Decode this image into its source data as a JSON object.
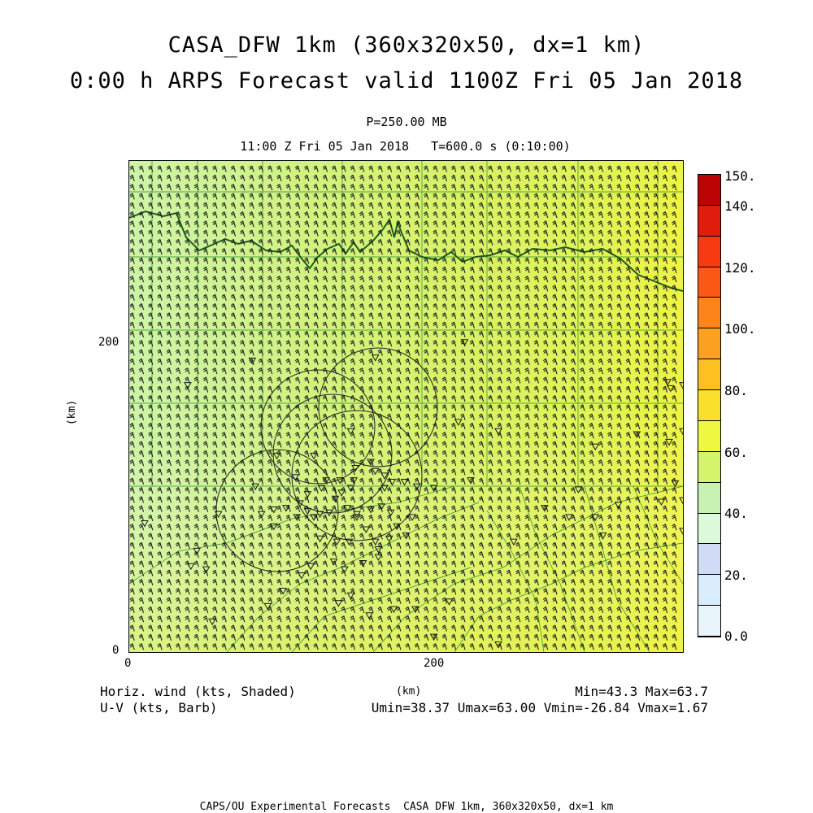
{
  "title": {
    "line1": "CASA_DFW 1km (360x320x50, dx=1 km)",
    "line2": "0:00 h ARPS Forecast valid 1100Z Fri 05 Jan 2018"
  },
  "level": "P=250.00 MB",
  "valid_time": "11:00 Z Fri 05 Jan 2018   T=600.0 s (0:10:00)",
  "axes": {
    "x_ticks": [
      "0",
      "200"
    ],
    "y_ticks": [
      "0",
      "200"
    ],
    "x_title": "(km)",
    "y_title": "(km)",
    "domain_km": {
      "x": [
        0,
        360
      ],
      "y": [
        0,
        320
      ]
    }
  },
  "colorbar": {
    "labels": [
      "150.",
      "140.",
      "120.",
      "100.",
      "80.",
      "60.",
      "40.",
      "20.",
      "0.0"
    ],
    "levels": [
      0,
      10,
      20,
      30,
      40,
      50,
      60,
      70,
      80,
      90,
      100,
      110,
      120,
      130,
      140,
      150
    ],
    "colors": [
      "#e8f6fc",
      "#d8ecfb",
      "#d0dcf6",
      "#dcfada",
      "#c8f2b4",
      "#d4f46c",
      "#eef840",
      "#f8e02c",
      "#fcc020",
      "#fca020",
      "#fc8418",
      "#fc5a14",
      "#f83a10",
      "#e01c0c",
      "#bc0404"
    ]
  },
  "footer": {
    "left1": "Horiz. wind (kts, Shaded)",
    "left2": "U-V (kts, Barb)",
    "right1": "Min=43.3 Max=63.7",
    "right2": "Umin=38.37 Umax=63.00 Vmin=-26.84 Vmax=1.67"
  },
  "credit": "CAPS/OU Experimental Forecasts  CASA DFW 1km, 360x320x50, dx=1 km",
  "map": {
    "field": "horizontal wind speed at 250 mb",
    "speed_min_kts": 43.3,
    "speed_max_kts": 63.7,
    "radar_rings": 5,
    "stations": [
      [
        54,
        300
      ],
      [
        50,
        266
      ],
      [
        10,
        236
      ],
      [
        82,
        212
      ],
      [
        94,
        227
      ],
      [
        116,
        228
      ],
      [
        111,
        223
      ],
      [
        125,
        213
      ],
      [
        128,
        208
      ],
      [
        137,
        208
      ],
      [
        146,
        208
      ],
      [
        147,
        200
      ],
      [
        157,
        196
      ],
      [
        160,
        202
      ],
      [
        166,
        205
      ],
      [
        166,
        213
      ],
      [
        171,
        209
      ],
      [
        179,
        209
      ],
      [
        187,
        212
      ],
      [
        198,
        213
      ],
      [
        184,
        232
      ],
      [
        164,
        225
      ],
      [
        170,
        229
      ],
      [
        174,
        238
      ],
      [
        180,
        244
      ],
      [
        169,
        246
      ],
      [
        157,
        227
      ],
      [
        148,
        230
      ],
      [
        142,
        226
      ],
      [
        148,
        232
      ],
      [
        154,
        240
      ],
      [
        160,
        248
      ],
      [
        162,
        253
      ],
      [
        162,
        258
      ],
      [
        152,
        262
      ],
      [
        140,
        266
      ],
      [
        133,
        261
      ],
      [
        124,
        246
      ],
      [
        135,
        248
      ],
      [
        143,
        248
      ],
      [
        144,
        213
      ],
      [
        138,
        216
      ],
      [
        134,
        220
      ],
      [
        130,
        229
      ],
      [
        124,
        230
      ],
      [
        120,
        232
      ],
      [
        109,
        232
      ],
      [
        116,
        217
      ],
      [
        102,
        226
      ],
      [
        86,
        230
      ],
      [
        94,
        238
      ],
      [
        108,
        206
      ],
      [
        118,
        264
      ],
      [
        112,
        270
      ],
      [
        100,
        280
      ],
      [
        90,
        290
      ],
      [
        44,
        254
      ],
      [
        40,
        264
      ],
      [
        58,
        230
      ],
      [
        136,
        288
      ],
      [
        144,
        283
      ],
      [
        156,
        296
      ],
      [
        172,
        292
      ],
      [
        186,
        292
      ],
      [
        198,
        310
      ],
      [
        240,
        315
      ],
      [
        208,
        287
      ],
      [
        250,
        248
      ],
      [
        286,
        232
      ],
      [
        292,
        214
      ],
      [
        303,
        186
      ],
      [
        303,
        232
      ],
      [
        318,
        224
      ],
      [
        346,
        222
      ],
      [
        355,
        210
      ],
      [
        360,
        176
      ],
      [
        360,
        146
      ],
      [
        352,
        148
      ],
      [
        351,
        183
      ],
      [
        360,
        221
      ],
      [
        360,
        241
      ],
      [
        366,
        279
      ],
      [
        364,
        344
      ],
      [
        366,
        365
      ],
      [
        364,
        375
      ],
      [
        363,
        387
      ],
      [
        330,
        178
      ],
      [
        240,
        176
      ],
      [
        214,
        170
      ],
      [
        222,
        208
      ],
      [
        144,
        176
      ],
      [
        120,
        192
      ],
      [
        96,
        192
      ],
      [
        38,
        146
      ],
      [
        80,
        130
      ],
      [
        160,
        128
      ],
      [
        218,
        118
      ],
      [
        350,
        144
      ],
      [
        270,
        226
      ],
      [
        308,
        244
      ]
    ]
  }
}
